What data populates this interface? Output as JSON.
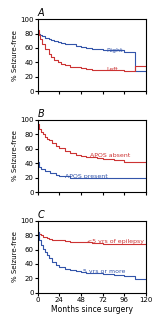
{
  "chart_data": [
    {
      "type": "step",
      "title": "A",
      "ylabel": "% Seizure-free",
      "xlim": [
        0,
        120
      ],
      "ylim": [
        0,
        100
      ],
      "xticks": [
        0,
        24,
        48,
        72,
        96,
        120
      ],
      "yticks": [
        0,
        20,
        40,
        60,
        80,
        100
      ],
      "tick_labels": "y",
      "grid": false,
      "series": [
        {
          "color": "#3355aa",
          "x": [
            0,
            1,
            3,
            5,
            8,
            12,
            15,
            18,
            22,
            26,
            30,
            36,
            42,
            48,
            54,
            60,
            66,
            72,
            96,
            108,
            120
          ],
          "values": [
            82,
            80,
            78,
            76,
            74,
            72,
            71,
            70,
            68,
            67,
            66,
            65,
            63,
            61,
            60,
            59,
            58,
            57,
            55,
            28,
            28
          ]
        },
        {
          "color": "#cc3333",
          "x": [
            0,
            1,
            3,
            5,
            8,
            12,
            15,
            18,
            22,
            26,
            30,
            36,
            42,
            48,
            54,
            60,
            66,
            72,
            84,
            96,
            108,
            120
          ],
          "values": [
            85,
            78,
            72,
            65,
            58,
            52,
            48,
            44,
            41,
            38,
            36,
            34,
            33,
            32,
            31,
            30,
            30,
            29,
            29,
            28,
            35,
            35
          ]
        }
      ],
      "annotations": [
        {
          "text": "Right",
          "x": 76,
          "y": 57,
          "color": "#3355aa"
        },
        {
          "text": "Left",
          "x": 76,
          "y": 30,
          "color": "#cc3333"
        }
      ]
    },
    {
      "type": "step",
      "title": "B",
      "ylabel": "% Seizure-free",
      "xlim": [
        0,
        120
      ],
      "ylim": [
        0,
        100
      ],
      "xticks": [
        0,
        24,
        48,
        72,
        96,
        120
      ],
      "yticks": [
        0,
        20,
        40,
        60,
        80,
        100
      ],
      "tick_labels": "y",
      "grid": false,
      "series": [
        {
          "color": "#cc3333",
          "x": [
            0,
            1,
            2,
            4,
            6,
            8,
            10,
            12,
            16,
            20,
            24,
            30,
            36,
            42,
            48,
            54,
            60,
            66,
            72,
            84,
            96,
            108,
            120
          ],
          "values": [
            95,
            92,
            88,
            84,
            80,
            77,
            74,
            72,
            68,
            64,
            61,
            57,
            54,
            52,
            50,
            49,
            48,
            47,
            46,
            44,
            42,
            42,
            42
          ]
        },
        {
          "color": "#3355aa",
          "x": [
            0,
            1,
            2,
            4,
            8,
            14,
            20,
            24,
            36,
            48,
            60,
            120
          ],
          "values": [
            42,
            38,
            35,
            32,
            29,
            27,
            24,
            22,
            20,
            19,
            19,
            19
          ]
        }
      ],
      "annotations": [
        {
          "text": "APOS absent",
          "x": 58,
          "y": 51,
          "color": "#cc3333"
        },
        {
          "text": "APOS present",
          "x": 30,
          "y": 22,
          "color": "#3355aa"
        }
      ]
    },
    {
      "type": "step",
      "title": "C",
      "ylabel": "% Seizure-free",
      "xlabel": "Months since surgery",
      "xlim": [
        0,
        120
      ],
      "ylim": [
        0,
        100
      ],
      "xticks": [
        0,
        24,
        48,
        72,
        96,
        120
      ],
      "yticks": [
        0,
        20,
        40,
        60,
        80,
        100
      ],
      "tick_labels": true,
      "grid": false,
      "series": [
        {
          "color": "#cc3333",
          "x": [
            0,
            1,
            2,
            4,
            6,
            8,
            10,
            12,
            16,
            20,
            24,
            30,
            36,
            42,
            48,
            54,
            60,
            66,
            72,
            84,
            96,
            108,
            120
          ],
          "values": [
            85,
            83,
            81,
            80,
            78,
            77,
            76,
            75,
            74,
            73,
            73,
            72,
            71,
            71,
            70,
            70,
            69,
            69,
            68,
            68,
            68,
            68,
            68
          ]
        },
        {
          "color": "#3355aa",
          "x": [
            0,
            1,
            2,
            4,
            6,
            8,
            10,
            12,
            16,
            20,
            24,
            30,
            36,
            42,
            48,
            54,
            60,
            66,
            72,
            84,
            96,
            108,
            120
          ],
          "values": [
            85,
            80,
            74,
            67,
            61,
            56,
            52,
            48,
            43,
            39,
            36,
            33,
            31,
            30,
            29,
            28,
            27,
            27,
            26,
            25,
            24,
            19,
            19
          ]
        }
      ],
      "annotations": [
        {
          "text": "<5 yrs of epilepsy",
          "x": 55,
          "y": 71,
          "color": "#cc3333"
        },
        {
          "text": "5 yrs or more",
          "x": 50,
          "y": 29,
          "color": "#3355aa"
        }
      ]
    }
  ]
}
